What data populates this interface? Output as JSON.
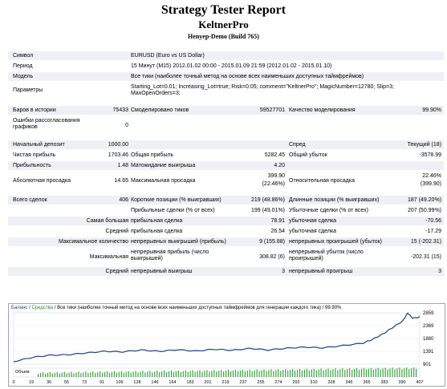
{
  "header": {
    "title": "Strategy Tester Report",
    "expert": "KeltnerPro",
    "server": "Henyep-Demo  (Build 765)"
  },
  "params": {
    "symbol_label": "Символ",
    "symbol_value": "EURUSD (Euro vs US Dollar)",
    "period_label": "Период",
    "period_value": "15 Минут (M15) 2012.01.02 00:00 - 2015.01.09 21:59 (2012.01.02 - 2015.01.10)",
    "model_label": "Модель",
    "model_value": "Все тики (наиболее точный метод на основе всех наименьших доступных таймфреймов)",
    "params_label": "Параметры",
    "params_value": "Starting_Lot=0.01; Increasing_Lot=true; Risk=0.05; comment=\"KeltnerPro\"; MagicNumber=12780; Slip=3; MaxOpenOrders=3;"
  },
  "stats": {
    "bars_label": "Баров в истории",
    "bars_value": "75433",
    "ticks_label": "Смоделировано тиков",
    "ticks_value": "59527701",
    "quality_label": "Качество моделирования",
    "quality_value": "99.90%",
    "errors_label": "Ошибки рассогласования графиков",
    "errors_value": "0",
    "deposit_label": "Начальный депозит",
    "deposit_value": "1000.00",
    "spread_label": "Спред",
    "spread_value": "Текущий (18)",
    "net_label": "Чистая прибыль",
    "net_value": "1703.46",
    "gross_profit_label": "Общая прибыль",
    "gross_profit_value": "5282.45",
    "gross_loss_label": "Общий убыток",
    "gross_loss_value": "-3578.99",
    "pf_label": "Прибыльность",
    "pf_value": "1.48",
    "payoff_label": "Матожидание выигрыша",
    "payoff_value": "4.20",
    "abs_dd_label": "Абсолютная просадка",
    "abs_dd_value": "14.65",
    "max_dd_label": "Максимальная просадка",
    "max_dd_value1": "399.90",
    "max_dd_value2": "(22.46%)",
    "rel_dd_label": "Относительная просадка",
    "rel_dd_value1": "22.46%",
    "rel_dd_value2": "(399.90)",
    "trades_label": "Всего сделок",
    "trades_value": "406",
    "short_label": "Короткие позиции (% выигравших)",
    "short_value": "219 (48.86%)",
    "long_label": "Длинные позиции (% выигравших)",
    "long_value": "187 (49.20%)",
    "profit_trades_label": "Прибыльные сделки (% от всех)",
    "profit_trades_value": "199 (49.01%)",
    "loss_trades_label": "Убыточные сделки (% от всех)",
    "loss_trades_value": "207 (50.99%)",
    "largest_label": "Самая большая",
    "largest_profit_label": "прибыльная сделка",
    "largest_profit_value": "78.91",
    "largest_loss_label": "убыточная сделка",
    "largest_loss_value": "-70.56",
    "average_label": "Средний",
    "average_profit_label": "прибыльная сделка",
    "average_profit_value": "26.54",
    "average_loss_label": "убыточная сделка",
    "average_loss_value": "-17.29",
    "maxcount_label": "Максимальное количество",
    "cons_wins_label": "непрерывных выигрышей (прибыль)",
    "cons_wins_value": "9 (155.88)",
    "cons_losses_label": "непрерывных проигрышей (убыток)",
    "cons_losses_value": "15 (-202.31)",
    "maximal_label": "Максимальная",
    "max_cons_profit_label": "непрерывная прибыль (число выигрышей)",
    "max_cons_profit_value": "308.82 (6)",
    "max_cons_loss_label": "непрерывный убыток (число проигрышей)",
    "max_cons_loss_value": "-202.31 (15)",
    "avg2_label": "Средний",
    "avg_cons_wins_label": "непрерывный выигрыш",
    "avg_cons_wins_value": "3",
    "avg_cons_losses_label": "непрерывный проигрыш",
    "avg_cons_losses_value": "3"
  },
  "chart_legend": {
    "balance": "Баланс",
    "sep1": " / ",
    "equity": "Средства",
    "sep2": " / ",
    "text": "Все тики (наиболее точный метод на основе всех наименьших доступных таймфреймов для генерации каждого тика)",
    "sep3": " / ",
    "quality": "99.90%"
  },
  "chart_data": {
    "type": "line",
    "title": "",
    "series": [
      {
        "name": "Баланс",
        "x": [
          0,
          19,
          36,
          55,
          73,
          91,
          109,
          128,
          146,
          164,
          183,
          201,
          219,
          237,
          255,
          274,
          292,
          310,
          330,
          350,
          360,
          370,
          380,
          390,
          395,
          400,
          407
        ],
        "values": [
          1000,
          1160,
          1240,
          1260,
          1330,
          1390,
          1370,
          1440,
          1390,
          1450,
          1400,
          1470,
          1430,
          1500,
          1440,
          1510,
          1550,
          1520,
          1610,
          1700,
          1850,
          2050,
          2300,
          2550,
          2850,
          2650,
          2700
        ]
      }
    ],
    "volume_label": "Объем",
    "y_ticks": [
      "2859",
      "2369",
      "1880",
      "1391",
      "901"
    ],
    "x_ticks": [
      "0",
      "19",
      "36",
      "55",
      "73",
      "91",
      "109",
      "128",
      "146",
      "164",
      "183",
      "201",
      "219",
      "237",
      "255",
      "274",
      "292",
      "310",
      "328",
      "346",
      "365",
      "383",
      "390",
      "407"
    ],
    "ylim": [
      901,
      2859
    ],
    "xlim": [
      0,
      407
    ],
    "colors": {
      "balance": "#1f3f8f",
      "equity": "#2a9a2a",
      "volume": "#3aa33a"
    }
  }
}
